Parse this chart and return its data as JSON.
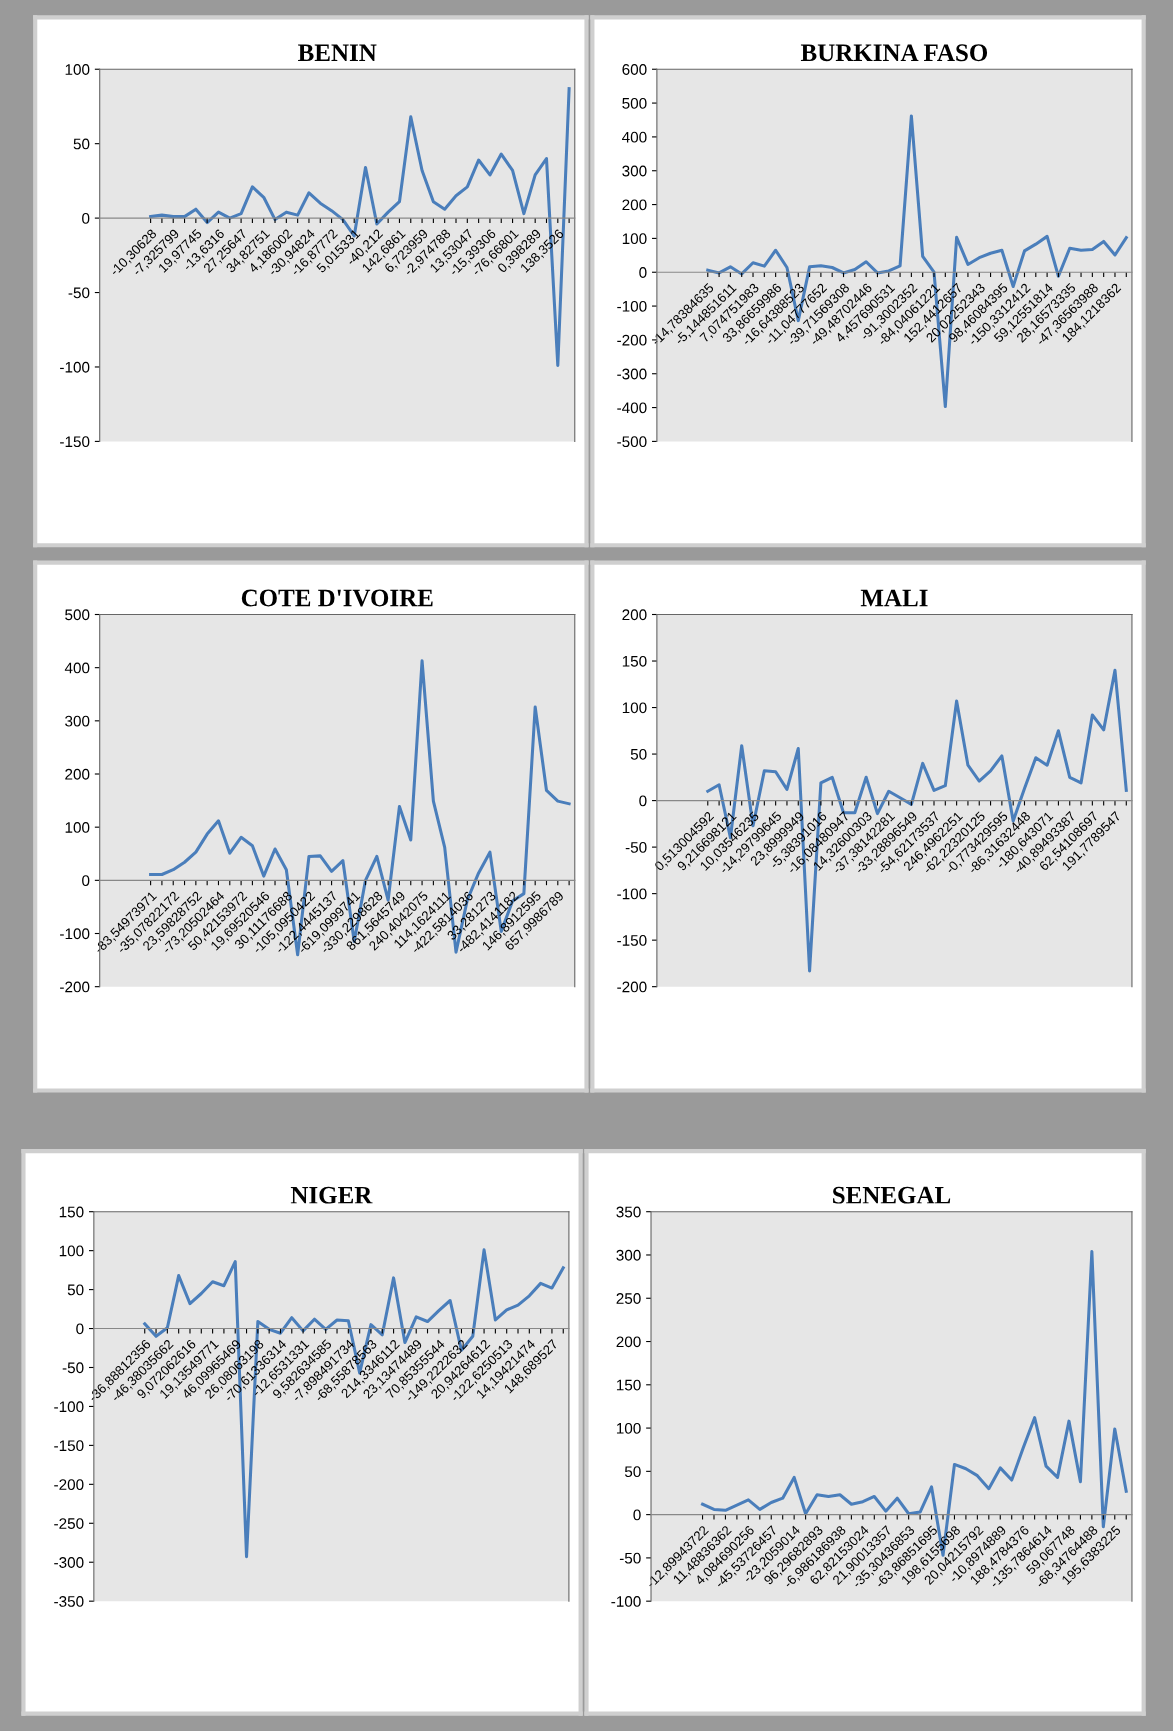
{
  "chart_data": [
    {
      "type": "line",
      "title": "BENIN",
      "color": "#4a7ebb",
      "ylim": [
        -150,
        100
      ],
      "yticks": [
        -150,
        -100,
        -50,
        0,
        50,
        100
      ],
      "categories": [
        "-10,30628",
        null,
        "-7,325799",
        null,
        "19,97745",
        null,
        "-13,6316",
        null,
        "27,25647",
        null,
        "34,82751",
        null,
        "4,186002",
        null,
        "-30,94824",
        null,
        "-16,87772",
        null,
        "5,015331",
        null,
        "-40,212",
        null,
        "142,6861",
        null,
        "6,723959",
        null,
        "-2,974788",
        null,
        "13,53047",
        null,
        "-15,39306",
        null,
        "-76,66801",
        null,
        "0,398289",
        null,
        "138,3526",
        null
      ],
      "values": [
        1,
        2,
        1,
        1,
        6,
        -3,
        4,
        0,
        3,
        21,
        14,
        -1,
        4,
        2,
        17,
        10,
        5,
        -1,
        -12,
        34,
        -4,
        4,
        11,
        68,
        32,
        11,
        6,
        15,
        21,
        39,
        29,
        43,
        32,
        3,
        29,
        40,
        -99,
        87
      ]
    },
    {
      "type": "line",
      "title": "BURKINA FASO",
      "color": "#4a7ebb",
      "ylim": [
        -500,
        600
      ],
      "yticks": [
        -500,
        -400,
        -300,
        -200,
        -100,
        0,
        100,
        200,
        300,
        400,
        500,
        600
      ],
      "categories": [
        "-14,78384635",
        null,
        "-5,144851611",
        null,
        "7,074751983",
        null,
        "33,86659986",
        null,
        "-16,64388523",
        null,
        "-11,04777652",
        null,
        "-39,71569308",
        null,
        "-49,48702446",
        null,
        "4,457690531",
        null,
        "-91,3002352",
        null,
        "-84,04061221",
        null,
        "152,4412657",
        null,
        "20,02252343",
        null,
        "98,46084395",
        null,
        "-150,3312412",
        null,
        "59,12551814",
        null,
        "28,16573335",
        null,
        "-47,36563988",
        null,
        "184,1218362",
        null
      ],
      "values": [
        6,
        -2,
        16,
        -5,
        28,
        18,
        65,
        14,
        -143,
        16,
        19,
        14,
        -2,
        8,
        31,
        -2,
        4,
        19,
        462,
        47,
        0,
        -397,
        103,
        23,
        43,
        56,
        65,
        -42,
        63,
        83,
        106,
        -12,
        71,
        65,
        67,
        91,
        51,
        102
      ]
    },
    {
      "type": "line",
      "title": "COTE D'IVOIRE",
      "color": "#4a7ebb",
      "ylim": [
        -200,
        500
      ],
      "yticks": [
        -200,
        -100,
        0,
        100,
        200,
        300,
        400,
        500
      ],
      "categories": [
        "-83,54973971",
        null,
        "-35,07822172",
        null,
        "23,59828752",
        null,
        "-73,20502464",
        null,
        "50,42153972",
        null,
        "19,69520546",
        null,
        "30,11176688",
        null,
        "-105,0950422",
        null,
        "-122,4445137",
        null,
        "-619,0999741",
        null,
        "-330,2298628",
        null,
        "861,5645749",
        null,
        "240,4042075",
        null,
        "114,1624111",
        null,
        "-422,5814036",
        null,
        "33,281273",
        null,
        "-482,4141182",
        null,
        "146,8912595",
        null,
        "657,9986789",
        null
      ],
      "values": [
        11,
        11,
        20,
        34,
        53,
        87,
        112,
        51,
        81,
        65,
        8,
        59,
        20,
        -140,
        45,
        46,
        17,
        37,
        -115,
        0,
        45,
        -37,
        139,
        76,
        413,
        149,
        62,
        -135,
        -37,
        14,
        53,
        -96,
        -39,
        -25,
        326,
        169,
        149,
        144
      ]
    },
    {
      "type": "line",
      "title": "MALI",
      "color": "#4a7ebb",
      "ylim": [
        -200,
        200
      ],
      "yticks": [
        -200,
        -150,
        -100,
        -50,
        0,
        50,
        100,
        150,
        200
      ],
      "categories": [
        "0,513004592",
        null,
        "9,216698121",
        null,
        "10,03546235",
        null,
        "-14,29799645",
        null,
        "23,8999949",
        null,
        "-5,38391016",
        null,
        "-16,08480947",
        null,
        "14,32600303",
        null,
        "-37,38142281",
        null,
        "-33,28896549",
        null,
        "-54,62173537",
        null,
        "246,4962251",
        null,
        "-62,22320125",
        null,
        "-0,773429595",
        null,
        "-86,31632448",
        null,
        "-180,643071",
        null,
        "-40,89493387",
        null,
        "62,54108697",
        null,
        "191,7789547",
        null
      ],
      "values": [
        10,
        17,
        -40,
        59,
        -27,
        32,
        31,
        12,
        56,
        -183,
        19,
        25,
        -13,
        -13,
        25,
        -14,
        10,
        3,
        -4,
        40,
        11,
        16,
        107,
        38,
        21,
        32,
        48,
        -22,
        13,
        46,
        38,
        75,
        25,
        19,
        92,
        76,
        140,
        11
      ]
    },
    {
      "type": "line",
      "title": "NIGER",
      "color": "#4a7ebb",
      "ylim": [
        -350,
        150
      ],
      "yticks": [
        -350,
        -300,
        -250,
        -200,
        -150,
        -100,
        -50,
        0,
        50,
        100,
        150
      ],
      "categories": [
        "-36,88812356",
        null,
        "-46,38035662",
        null,
        "9,072062616",
        null,
        "19,13549771",
        null,
        "46,09965469",
        null,
        "26,08063198",
        null,
        "-70,61336314",
        null,
        "-12,6531331",
        null,
        "9,582634585",
        null,
        "-7,898491734",
        null,
        "-68,55878563",
        null,
        "214,3346112",
        null,
        "23,13474489",
        null,
        "70,85355544",
        null,
        "-149,2222632",
        null,
        "20,94264612",
        null,
        "-122,6250513",
        null,
        "14,19421474",
        null,
        "148,689527",
        null
      ],
      "values": [
        6,
        -10,
        1,
        68,
        32,
        45,
        60,
        55,
        86,
        -293,
        9,
        -1,
        -6,
        14,
        -3,
        12,
        -1,
        11,
        10,
        -57,
        5,
        -8,
        65,
        -18,
        15,
        9,
        23,
        36,
        -28,
        -10,
        101,
        11,
        24,
        30,
        42,
        58,
        52,
        78
      ]
    },
    {
      "type": "line",
      "title": "SENEGAL",
      "color": "#4a7ebb",
      "ylim": [
        -100,
        350
      ],
      "yticks": [
        -100,
        -50,
        0,
        50,
        100,
        150,
        200,
        250,
        300,
        350
      ],
      "categories": [
        "-12,89943722",
        null,
        "11,48836362",
        null,
        "4,084690256",
        null,
        "-45,53726457",
        null,
        "-23,2059014",
        null,
        "96,29682893",
        null,
        "-6,986186938",
        null,
        "62,82153024",
        null,
        "21,90013357",
        null,
        "-35,30436853",
        null,
        "-63,86851695",
        null,
        "198,6155698",
        null,
        "20,04215792",
        null,
        "-10,8974889",
        null,
        "188,4784376",
        null,
        "-135,7864614",
        null,
        "59,067748",
        null,
        "-68,34764488",
        null,
        "195,6383225",
        null
      ],
      "values": [
        12,
        6,
        5,
        11,
        17,
        6,
        14,
        19,
        43,
        1,
        23,
        21,
        23,
        12,
        15,
        21,
        4,
        19,
        1,
        3,
        32,
        -47,
        58,
        53,
        45,
        30,
        54,
        40,
        77,
        112,
        56,
        43,
        108,
        38,
        304,
        -14,
        99,
        27
      ]
    }
  ]
}
